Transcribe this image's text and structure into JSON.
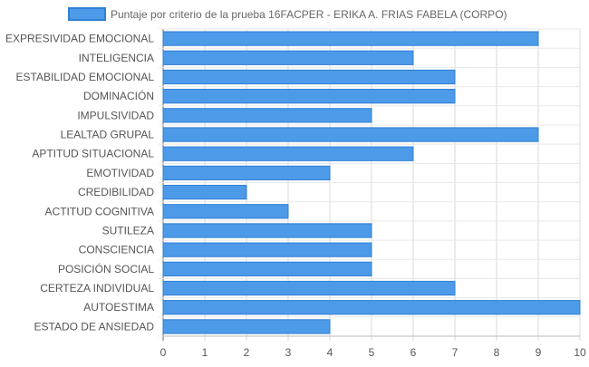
{
  "chart_data": {
    "type": "bar",
    "orientation": "horizontal",
    "title": "",
    "xlabel": "",
    "ylabel": "",
    "xlim": [
      0,
      10
    ],
    "grid": true,
    "legend_position": "top",
    "categories": [
      "EXPRESIVIDAD EMOCIONAL",
      "INTELIGENCIA",
      "ESTABILIDAD EMOCIONAL",
      "DOMINACIÓN",
      "IMPULSIVIDAD",
      "LEALTAD GRUPAL",
      "APTITUD SITUACIONAL",
      "EMOTIVIDAD",
      "CREDIBILIDAD",
      "ACTITUD COGNITIVA",
      "SUTILEZA",
      "CONSCIENCIA",
      "POSICIÓN SOCIAL",
      "CERTEZA INDIVIDUAL",
      "AUTOESTIMA",
      "ESTADO DE ANSIEDAD"
    ],
    "x_ticks": [
      "0",
      "1",
      "2",
      "3",
      "4",
      "5",
      "6",
      "7",
      "8",
      "9",
      "10"
    ],
    "series": [
      {
        "name": "Puntaje por criterio de la prueba 16FACPER - ERIKA A. FRIAS FABELA (CORPO)",
        "color": "#4d9ae8",
        "border_color": "#2f7fd6",
        "values": [
          9,
          6,
          7,
          7,
          5,
          9,
          6,
          4,
          2,
          3,
          5,
          5,
          5,
          7,
          10,
          4
        ]
      }
    ]
  }
}
